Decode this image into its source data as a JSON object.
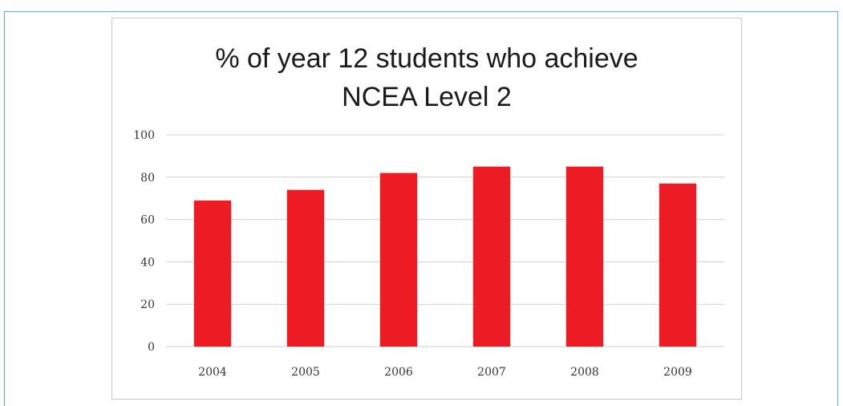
{
  "chart_data": {
    "type": "bar",
    "title": "% of year 12 students who achieve\nNCEA Level 2",
    "categories": [
      "2004",
      "2005",
      "2006",
      "2007",
      "2008",
      "2009"
    ],
    "values": [
      69,
      74,
      82,
      85,
      85,
      77
    ],
    "ylim": [
      0,
      100
    ],
    "yticks": [
      0,
      20,
      40,
      60,
      80,
      100
    ],
    "grid": true,
    "bar_color": "#ed1c24",
    "grid_color": "#d0d0d0"
  }
}
